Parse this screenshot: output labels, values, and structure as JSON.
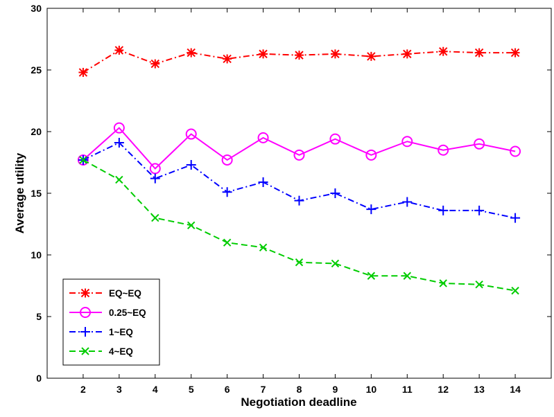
{
  "chart_data": {
    "type": "line",
    "title": "",
    "xlabel": "Negotiation deadline",
    "ylabel": "Average utility",
    "x": [
      2,
      3,
      4,
      5,
      6,
      7,
      8,
      9,
      10,
      11,
      12,
      13,
      14
    ],
    "xlim": [
      1,
      15
    ],
    "ylim": [
      0,
      30
    ],
    "xticks": [
      2,
      3,
      4,
      5,
      6,
      7,
      8,
      9,
      10,
      11,
      12,
      13,
      14
    ],
    "yticks": [
      0,
      5,
      10,
      15,
      20,
      25,
      30
    ],
    "grid": false,
    "legend_position": "bottom-left",
    "series": [
      {
        "name": "EQ~EQ",
        "color": "#ff0000",
        "line_style": "dash-dot",
        "marker": "asterisk",
        "values": [
          24.8,
          26.6,
          25.5,
          26.4,
          25.9,
          26.3,
          26.2,
          26.3,
          26.1,
          26.3,
          26.5,
          26.4,
          26.4
        ]
      },
      {
        "name": "0.25~EQ",
        "color": "#ff00ff",
        "line_style": "solid",
        "marker": "circle",
        "values": [
          17.7,
          20.3,
          17.0,
          19.8,
          17.7,
          19.5,
          18.1,
          19.4,
          18.1,
          19.2,
          18.5,
          19.0,
          18.4
        ]
      },
      {
        "name": "1~EQ",
        "color": "#0000ff",
        "line_style": "dash-dot",
        "marker": "plus",
        "values": [
          17.7,
          19.1,
          16.2,
          17.3,
          15.1,
          15.9,
          14.4,
          15.0,
          13.7,
          14.3,
          13.6,
          13.6,
          13.0
        ]
      },
      {
        "name": "4~EQ",
        "color": "#00cc00",
        "line_style": "dashed",
        "marker": "x",
        "values": [
          17.7,
          16.1,
          13.0,
          12.4,
          11.0,
          10.6,
          9.4,
          9.3,
          8.3,
          8.3,
          7.7,
          7.6,
          7.1
        ]
      }
    ]
  }
}
